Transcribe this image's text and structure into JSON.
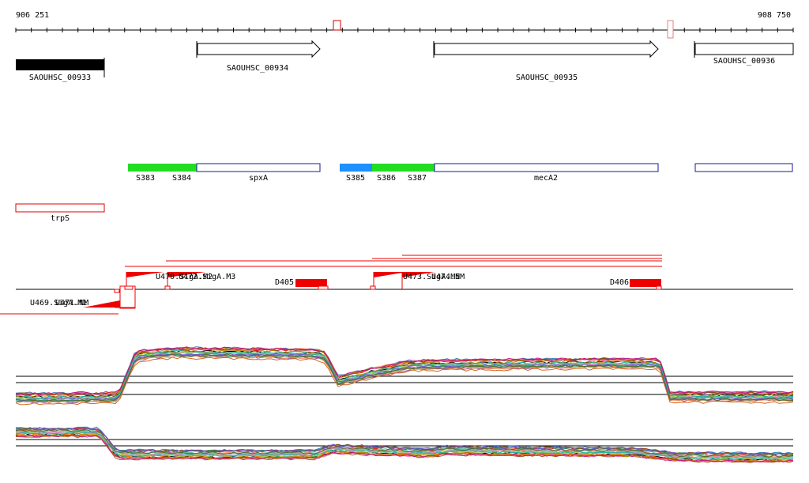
{
  "coords": {
    "start": "906 251",
    "end": "908 750"
  },
  "genes": [
    {
      "label": "SAOUHSC_00933"
    },
    {
      "label": "SAOUHSC_00934"
    },
    {
      "label": "SAOUHSC_00935"
    },
    {
      "label": "SAOUHSC_00936"
    }
  ],
  "segments": {
    "s383": "S383",
    "s384": "S384",
    "spxa": "spxA",
    "s385": "S385",
    "s386": "S386",
    "s387": "S387",
    "meca2": "mecA2"
  },
  "trps": "trpS",
  "features": {
    "u470": "U470.SigA.M2",
    "u472": "U472.SigA.M3",
    "d405": "D405",
    "u473": "U473.SigA.M5",
    "u474": "U474.NM",
    "d406": "D406",
    "u469": "U469.SigA.M1",
    "u471": "U471.NM"
  },
  "colors": {
    "accent_red": "#ee0000",
    "green": "#22dd22",
    "blue": "#1e90ff",
    "navy": "#1a1a9a",
    "black": "#000000"
  }
}
